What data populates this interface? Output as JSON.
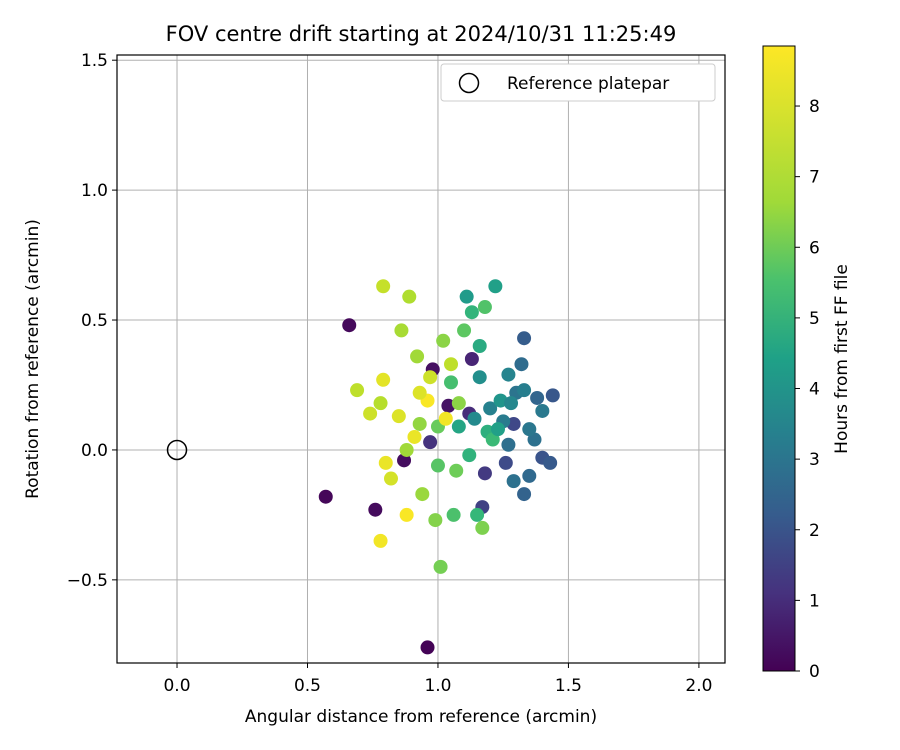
{
  "chart_data": {
    "type": "scatter",
    "title": "FOV centre drift starting at 2024/10/31 11:25:49",
    "xlabel": "Angular distance from reference (arcmin)",
    "ylabel": "Rotation from reference (arcmin)",
    "xlim": [
      -0.23,
      2.1
    ],
    "ylim": [
      -0.82,
      1.52
    ],
    "xticks": [
      0.0,
      0.5,
      1.0,
      1.5,
      2.0
    ],
    "xtick_labels": [
      "0.0",
      "0.5",
      "1.0",
      "1.5",
      "2.0"
    ],
    "yticks": [
      -0.5,
      0.0,
      0.5,
      1.0,
      1.5
    ],
    "ytick_labels": [
      "−0.5",
      "0.0",
      "0.5",
      "1.0",
      "1.5"
    ],
    "grid": true,
    "legend": {
      "placement": "top-right",
      "label": "Reference platepar"
    },
    "reference_point": {
      "x": 0.0,
      "y": 0.0
    },
    "colorbar": {
      "label": "Hours from first FF file",
      "colormap": "viridis",
      "range": [
        0,
        8.85
      ],
      "ticks": [
        0,
        1,
        2,
        3,
        4,
        5,
        6,
        7,
        8
      ],
      "tick_labels": [
        "0",
        "1",
        "2",
        "3",
        "4",
        "5",
        "6",
        "7",
        "8"
      ]
    },
    "series": [
      {
        "fields": [
          "x",
          "y",
          "hours"
        ],
        "points": [
          [
            0.96,
            -0.76,
            0.05
          ],
          [
            0.57,
            -0.18,
            0.15
          ],
          [
            0.66,
            0.48,
            0.2
          ],
          [
            0.76,
            -0.23,
            0.25
          ],
          [
            0.87,
            -0.04,
            0.3
          ],
          [
            0.98,
            0.31,
            0.35
          ],
          [
            1.04,
            0.17,
            0.45
          ],
          [
            1.13,
            0.35,
            0.9
          ],
          [
            1.12,
            0.14,
            1.1
          ],
          [
            0.97,
            0.03,
            1.3
          ],
          [
            1.18,
            -0.09,
            1.5
          ],
          [
            1.17,
            -0.22,
            1.7
          ],
          [
            1.29,
            0.1,
            1.9
          ],
          [
            1.26,
            -0.05,
            2.0
          ],
          [
            1.4,
            -0.03,
            2.3
          ],
          [
            1.44,
            0.21,
            2.4
          ],
          [
            1.43,
            -0.05,
            2.5
          ],
          [
            1.33,
            0.43,
            2.6
          ],
          [
            1.33,
            -0.17,
            2.8
          ],
          [
            1.38,
            0.2,
            2.9
          ],
          [
            1.35,
            -0.1,
            3.0
          ],
          [
            1.32,
            0.33,
            3.1
          ],
          [
            1.27,
            0.02,
            3.2
          ],
          [
            1.37,
            0.04,
            3.3
          ],
          [
            1.3,
            0.22,
            3.4
          ],
          [
            1.35,
            0.08,
            3.5
          ],
          [
            1.4,
            0.15,
            3.6
          ],
          [
            1.25,
            0.11,
            3.7
          ],
          [
            1.2,
            0.16,
            3.9
          ],
          [
            1.27,
            0.29,
            4.0
          ],
          [
            1.14,
            0.12,
            4.2
          ],
          [
            1.16,
            0.28,
            4.4
          ],
          [
            1.24,
            0.19,
            4.6
          ],
          [
            1.11,
            0.59,
            4.8
          ],
          [
            1.22,
            0.63,
            5.0
          ],
          [
            1.08,
            0.09,
            5.2
          ],
          [
            1.16,
            0.4,
            5.4
          ],
          [
            1.19,
            0.07,
            5.6
          ],
          [
            1.13,
            0.53,
            5.8
          ],
          [
            1.21,
            0.04,
            6.0
          ],
          [
            1.05,
            0.26,
            6.2
          ],
          [
            1.18,
            0.55,
            6.4
          ],
          [
            1.1,
            0.46,
            6.6
          ],
          [
            1.0,
            0.09,
            6.8
          ],
          [
            1.07,
            -0.08,
            6.9
          ],
          [
            1.01,
            -0.45,
            7.0
          ],
          [
            1.17,
            -0.3,
            7.1
          ],
          [
            0.99,
            -0.27,
            7.2
          ],
          [
            1.02,
            0.42,
            7.3
          ],
          [
            0.93,
            0.1,
            7.4
          ],
          [
            0.94,
            -0.17,
            7.5
          ],
          [
            0.88,
            0.0,
            7.6
          ],
          [
            0.86,
            0.46,
            7.7
          ],
          [
            0.89,
            0.59,
            7.8
          ],
          [
            0.78,
            0.18,
            7.9
          ],
          [
            0.69,
            0.23,
            8.0
          ],
          [
            0.79,
            0.63,
            8.1
          ],
          [
            0.74,
            0.14,
            8.2
          ],
          [
            0.82,
            -0.11,
            8.3
          ],
          [
            0.85,
            0.13,
            8.4
          ],
          [
            0.79,
            0.27,
            8.5
          ],
          [
            0.8,
            -0.05,
            8.6
          ],
          [
            0.78,
            -0.35,
            8.7
          ],
          [
            0.96,
            0.19,
            8.8
          ],
          [
            0.93,
            0.22,
            8.4
          ],
          [
            0.91,
            0.05,
            8.6
          ],
          [
            1.03,
            0.12,
            8.7
          ],
          [
            0.88,
            -0.25,
            8.8
          ],
          [
            0.97,
            0.28,
            8.2
          ],
          [
            1.05,
            0.33,
            8.0
          ],
          [
            0.92,
            0.36,
            7.6
          ],
          [
            1.08,
            0.18,
            7.3
          ],
          [
            1.0,
            -0.06,
            6.5
          ],
          [
            1.06,
            -0.25,
            6.3
          ],
          [
            1.15,
            -0.25,
            5.9
          ],
          [
            1.12,
            -0.02,
            5.7
          ],
          [
            1.23,
            0.08,
            5.0
          ],
          [
            1.28,
            0.18,
            4.1
          ],
          [
            1.33,
            0.23,
            3.8
          ],
          [
            1.29,
            -0.12,
            3.3
          ]
        ]
      }
    ]
  }
}
